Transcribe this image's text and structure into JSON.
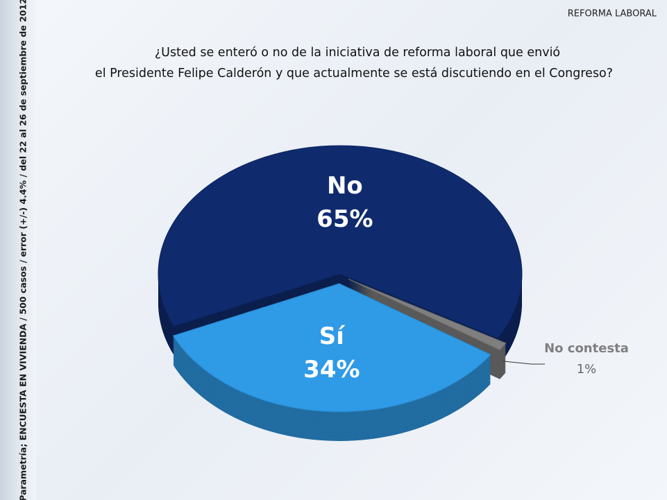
{
  "header": "REFORMA LABORAL",
  "source_note": "Parametría; ENCUESTA EN VIVIENDA / 500 casos / error (+/-) 4.4% / del 22 al 26 de septiembre de 2012",
  "chart_data": {
    "type": "pie",
    "title": [
      "¿Usted se enteró o no de la iniciativa de reforma laboral que envió",
      "el Presidente Felipe Calderón y que actualmente se está discutiendo en el Congreso?"
    ],
    "categories": [
      "No",
      "No contesta",
      "Sí"
    ],
    "values": [
      65,
      1,
      34
    ],
    "value_labels": [
      "65%",
      "1%",
      "34%"
    ],
    "colors": [
      "#0f2b6e",
      "#7f7f7f",
      "#2f9ae6"
    ]
  }
}
